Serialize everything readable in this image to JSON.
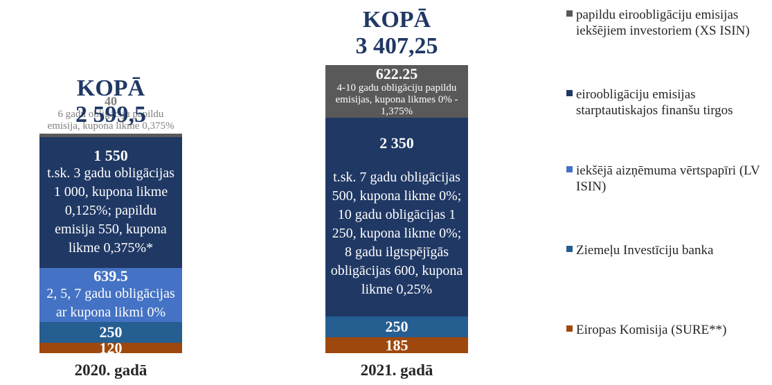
{
  "chart_data": {
    "type": "stacked_bar",
    "categories": [
      "2020. gadā",
      "2021. gadā"
    ],
    "totals_heading": "KOPĀ",
    "totals": [
      "2 599,5",
      "3 407,25"
    ],
    "series": [
      {
        "name": "Eiropas Komisija (SURE**)",
        "color": "#9e480e",
        "values": [
          120,
          185
        ],
        "notes": [
          null,
          null
        ]
      },
      {
        "name": "Ziemeļu Investīciju banka",
        "color": "#255e91",
        "values": [
          250,
          250
        ],
        "notes": [
          null,
          null
        ]
      },
      {
        "name": "iekšējā aizņēmuma vērtspapīri (LV ISIN)",
        "color": "#4472c4",
        "values": [
          639.5,
          null
        ],
        "notes": [
          "2, 5, 7 gadu obligācijas ar kupona likmi 0%",
          null
        ]
      },
      {
        "name": "eiroobligāciju emisijas starptautiskajos finanšu tirgos",
        "color": "#203864",
        "values": [
          1550,
          2350
        ],
        "value_labels": [
          "1 550",
          "2 350"
        ],
        "notes": [
          "t.sk. 3 gadu obligācijas 1 000, kupona likme 0,125%; papildu emisija 550, kupona likme 0,375%*",
          "t.sk. 7 gadu obligācijas 500, kupona likme 0%; 10 gadu obligācijas 1 250, kupona likme 0%; 8 gadu ilgtspējīgās obligācijas 600, kupona likme 0,25%"
        ]
      },
      {
        "name": "papildu eiroobligāciju emisijas iekšējiem investoriem (XS ISIN)",
        "color": "#595959",
        "values": [
          40,
          622.25
        ],
        "notes": [
          "6 gadu obligāciju papildu emisija, kupona likme 0,375%",
          "4-10 gadu obligāciju papildu emisijas, kupona likmes 0% - 1,375%"
        ]
      }
    ]
  }
}
